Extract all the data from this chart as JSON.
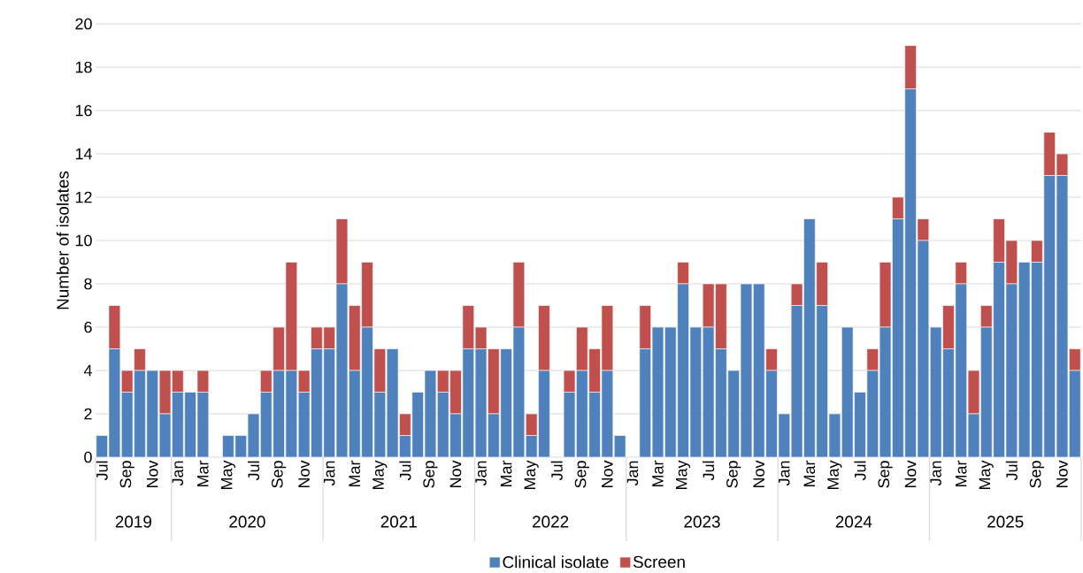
{
  "chart_data": {
    "type": "bar",
    "stacked": true,
    "ylabel": "Number of isolates",
    "categories": [
      "Jul",
      null,
      "Sep",
      null,
      "Nov",
      null,
      "Jan",
      null,
      "Mar",
      null,
      "May",
      null,
      "Jul",
      null,
      "Sep",
      null,
      "Nov",
      null,
      "Jan",
      null,
      "Mar",
      null,
      "May",
      null,
      "Jul",
      null,
      "Sep",
      null,
      "Nov",
      null,
      "Jan",
      null,
      "Mar",
      null,
      "May",
      null,
      "Jul",
      null,
      "Sep",
      null,
      "Nov",
      null,
      "Jan",
      null,
      "Mar",
      null,
      "May",
      null,
      "Jul",
      null,
      "Sep",
      null,
      "Nov",
      null,
      "Jan",
      null,
      "Mar",
      null,
      "May",
      null,
      "Jul",
      null,
      "Sep",
      null,
      "Nov",
      null,
      "Jan",
      null,
      "Mar",
      null,
      "May",
      null,
      "Jul",
      null,
      "Sep",
      null,
      "Nov",
      null
    ],
    "series": [
      {
        "name": "Clinical isolate",
        "color": "#4f81bd",
        "values": [
          1,
          5,
          3,
          4,
          4,
          2,
          3,
          3,
          3,
          0,
          1,
          1,
          2,
          3,
          4,
          4,
          3,
          5,
          5,
          8,
          4,
          6,
          3,
          5,
          1,
          3,
          4,
          3,
          2,
          5,
          5,
          2,
          5,
          6,
          1,
          4,
          0,
          3,
          4,
          3,
          4,
          1,
          0,
          5,
          6,
          6,
          8,
          6,
          6,
          5,
          4,
          8,
          8,
          4,
          2,
          7,
          11,
          7,
          2,
          6,
          3,
          4,
          6,
          11,
          17,
          10,
          6,
          5,
          8,
          2,
          6,
          9,
          8,
          9,
          9,
          13,
          13,
          4
        ]
      },
      {
        "name": "Screen",
        "color": "#c0504d",
        "values": [
          0,
          2,
          1,
          1,
          0,
          2,
          1,
          0,
          1,
          0,
          0,
          0,
          0,
          1,
          2,
          5,
          1,
          1,
          1,
          3,
          3,
          3,
          2,
          0,
          1,
          0,
          0,
          1,
          2,
          2,
          1,
          3,
          0,
          3,
          1,
          3,
          0,
          1,
          2,
          2,
          3,
          0,
          0,
          2,
          0,
          0,
          1,
          0,
          2,
          3,
          0,
          0,
          0,
          1,
          0,
          1,
          0,
          2,
          0,
          0,
          0,
          1,
          3,
          1,
          2,
          1,
          0,
          2,
          1,
          2,
          1,
          2,
          2,
          0,
          1,
          2,
          1,
          1
        ]
      }
    ],
    "ylim": [
      0,
      20
    ],
    "yticks": [
      0,
      2,
      4,
      6,
      8,
      10,
      12,
      14,
      16,
      18,
      20
    ],
    "grid": "y",
    "legend": "bottom",
    "annotations": [
      "2019",
      "2020",
      "2021",
      "2022",
      "2023",
      "2024",
      "2025"
    ]
  }
}
